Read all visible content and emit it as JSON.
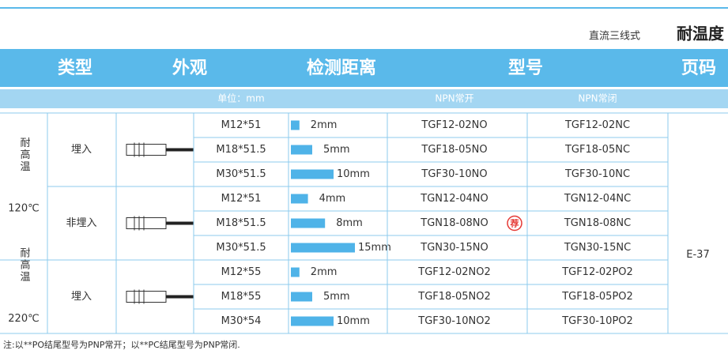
{
  "header": {
    "series": "直流三线式",
    "title": "耐温度"
  },
  "table": {
    "columns": [
      "类型",
      "外观",
      "检测距离",
      "型号",
      "页码"
    ],
    "subheader": {
      "unit": "单位：mm",
      "no": "NPN常开",
      "nc": "NPN常闭"
    },
    "groups": [
      {
        "temp": "耐高温",
        "temp_value": "120℃",
        "types": [
          {
            "mount": "埋入",
            "rows": [
              {
                "size": "M12*51",
                "distance": {
                  "value": 2,
                  "label": "2mm"
                },
                "no": "TGF12-02NO",
                "nc": "TGF12-02NC"
              },
              {
                "size": "M18*51.5",
                "distance": {
                  "value": 5,
                  "label": "5mm"
                },
                "no": "TGF18-05NO",
                "nc": "TGF18-05NC"
              },
              {
                "size": "M30*51.5",
                "distance": {
                  "value": 10,
                  "label": "10mm"
                },
                "no": "TGF30-10NO",
                "nc": "TGF30-10NC"
              }
            ]
          },
          {
            "mount": "非埋入",
            "rows": [
              {
                "size": "M12*51",
                "distance": {
                  "value": 4,
                  "label": "4mm"
                },
                "no": "TGN12-04NO",
                "nc": "TGN12-04NC"
              },
              {
                "size": "M18*51.5",
                "distance": {
                  "value": 8,
                  "label": "8mm"
                },
                "no": "TGN18-08NO",
                "badge": "荐",
                "nc": "TGN18-08NC"
              },
              {
                "size": "M30*51.5",
                "distance": {
                  "value": 15,
                  "label": "15mm"
                },
                "no": "TGN30-15NO",
                "nc": "TGN30-15NC"
              }
            ]
          }
        ]
      },
      {
        "temp": "耐高温",
        "temp_value": "220℃",
        "types": [
          {
            "mount": "埋入",
            "rows": [
              {
                "size": "M12*55",
                "distance": {
                  "value": 2,
                  "label": "2mm"
                },
                "no": "TGF12-02NO2",
                "nc": "TGF12-02PO2"
              },
              {
                "size": "M18*55",
                "distance": {
                  "value": 5,
                  "label": "5mm"
                },
                "no": "TGF18-05NO2",
                "nc": "TGF18-05PO2"
              },
              {
                "size": "M30*54",
                "distance": {
                  "value": 10,
                  "label": "10mm"
                },
                "no": "TGF30-10NO2",
                "nc": "TGF30-10PO2"
              }
            ]
          }
        ]
      }
    ],
    "page": "E-37"
  },
  "footnote": "注:以**PO结尾型号为PNP常开；以**PC结尾型号为PNP常闭."
}
